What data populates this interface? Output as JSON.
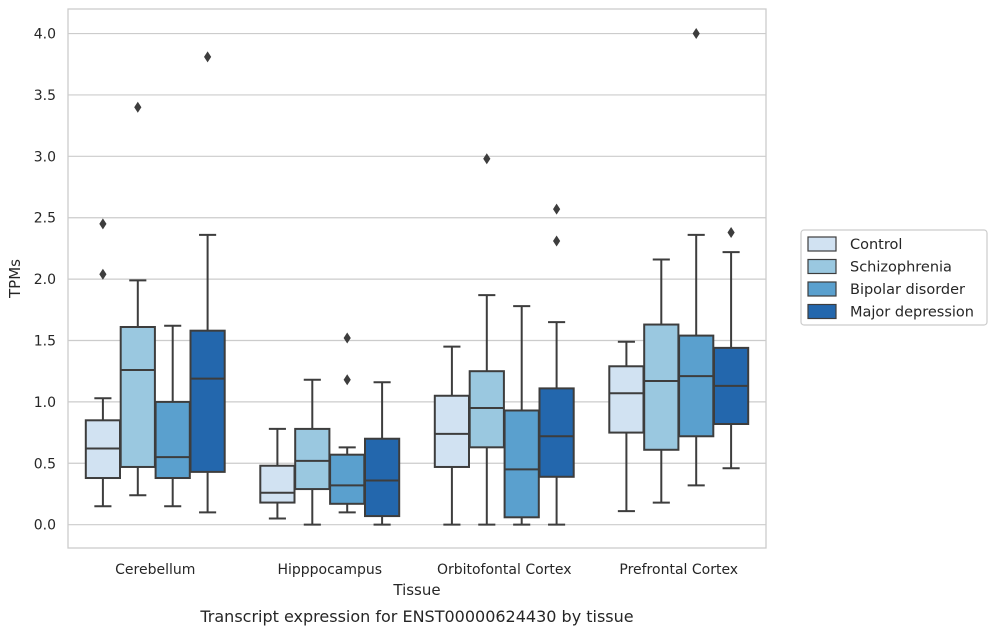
{
  "chart_data": {
    "type": "box",
    "caption": "Transcript expression for ENST00000624430 by tissue",
    "xlabel": "Tissue",
    "ylabel": "TPMs",
    "ylim": [
      -0.19,
      4.2
    ],
    "yticks": [
      "0.0",
      "0.5",
      "1.0",
      "1.5",
      "2.0",
      "2.5",
      "3.0",
      "3.5",
      "4.0"
    ],
    "grid": true,
    "legend_position": "right",
    "categories": [
      "Cerebellum",
      "Hipppocampus",
      "Orbitofontal Cortex",
      "Prefrontal Cortex"
    ],
    "series": [
      {
        "name": "Control",
        "color": "#d1e2f2",
        "boxes": [
          {
            "whislo": 0.15,
            "q1": 0.38,
            "med": 0.62,
            "q3": 0.85,
            "whishi": 1.03,
            "fliers": [
              2.04,
              2.45
            ]
          },
          {
            "whislo": 0.05,
            "q1": 0.18,
            "med": 0.26,
            "q3": 0.48,
            "whishi": 0.78,
            "fliers": []
          },
          {
            "whislo": 0.0,
            "q1": 0.47,
            "med": 0.74,
            "q3": 1.05,
            "whishi": 1.45,
            "fliers": []
          },
          {
            "whislo": 0.11,
            "q1": 0.75,
            "med": 1.07,
            "q3": 1.29,
            "whishi": 1.49,
            "fliers": []
          }
        ]
      },
      {
        "name": "Schizophrenia",
        "color": "#9ac8e0",
        "boxes": [
          {
            "whislo": 0.24,
            "q1": 0.47,
            "med": 1.26,
            "q3": 1.61,
            "whishi": 1.99,
            "fliers": [
              3.4
            ]
          },
          {
            "whislo": 0.0,
            "q1": 0.29,
            "med": 0.52,
            "q3": 0.78,
            "whishi": 1.18,
            "fliers": []
          },
          {
            "whislo": 0.0,
            "q1": 0.63,
            "med": 0.95,
            "q3": 1.25,
            "whishi": 1.87,
            "fliers": [
              2.98
            ]
          },
          {
            "whislo": 0.18,
            "q1": 0.61,
            "med": 1.17,
            "q3": 1.63,
            "whishi": 2.16,
            "fliers": []
          }
        ]
      },
      {
        "name": "Bipolar disorder",
        "color": "#5aa0ce",
        "boxes": [
          {
            "whislo": 0.15,
            "q1": 0.38,
            "med": 0.55,
            "q3": 1.0,
            "whishi": 1.62,
            "fliers": []
          },
          {
            "whislo": 0.1,
            "q1": 0.17,
            "med": 0.32,
            "q3": 0.57,
            "whishi": 0.63,
            "fliers": [
              1.18,
              1.52
            ]
          },
          {
            "whislo": 0.0,
            "q1": 0.06,
            "med": 0.45,
            "q3": 0.93,
            "whishi": 1.78,
            "fliers": []
          },
          {
            "whislo": 0.32,
            "q1": 0.72,
            "med": 1.21,
            "q3": 1.54,
            "whishi": 2.36,
            "fliers": [
              4.0
            ]
          }
        ]
      },
      {
        "name": "Major depression",
        "color": "#2367ad",
        "boxes": [
          {
            "whislo": 0.1,
            "q1": 0.43,
            "med": 1.19,
            "q3": 1.58,
            "whishi": 2.36,
            "fliers": [
              3.81
            ]
          },
          {
            "whislo": 0.0,
            "q1": 0.07,
            "med": 0.36,
            "q3": 0.7,
            "whishi": 1.16,
            "fliers": []
          },
          {
            "whislo": 0.0,
            "q1": 0.39,
            "med": 0.72,
            "q3": 1.11,
            "whishi": 1.65,
            "fliers": [
              2.31,
              2.57
            ]
          },
          {
            "whislo": 0.46,
            "q1": 0.82,
            "med": 1.13,
            "q3": 1.44,
            "whishi": 2.22,
            "fliers": [
              2.38
            ]
          }
        ]
      }
    ]
  }
}
